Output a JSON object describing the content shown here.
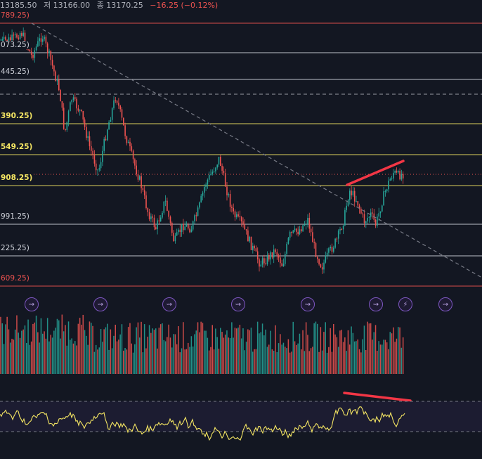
{
  "header": {
    "open_value": "13185.50",
    "low_label": "저",
    "low_value": "13166.00",
    "close_label": "종",
    "close_value": "13170.25",
    "change": "−16.25 (−0.12%)"
  },
  "colors": {
    "background": "#131722",
    "up": "#26a69a",
    "down": "#ef5350",
    "fib_yellow": "#f5e663",
    "fib_white": "#d1d4dc",
    "fib_red": "#ef5350",
    "trendline": "#787b86",
    "divergence": "#f23645",
    "rsi": "#f5e663",
    "event": "#7e57c2"
  },
  "chart_data": [
    {
      "type": "candlestick",
      "price_range_note": "",
      "levels": [
        {
          "label": "789.25)",
          "color": "red"
        },
        {
          "label": "073.25)",
          "color": "white"
        },
        {
          "label": "445.25)",
          "color": "white"
        },
        {
          "label": "",
          "color": "dashed"
        },
        {
          "label": "390.25)",
          "color": "yellow"
        },
        {
          "label": "549.25)",
          "color": "yellow"
        },
        {
          "label": "908.25)",
          "color": "yellow"
        },
        {
          "label": "991.25)",
          "color": "white"
        },
        {
          "label": "225.25)",
          "color": "white"
        },
        {
          "label": "609.25)",
          "color": "red"
        }
      ],
      "events": [
        {
          "icon": "arrow-circle-icon"
        },
        {
          "icon": "arrow-circle-icon"
        },
        {
          "icon": "arrow-circle-icon"
        },
        {
          "icon": "arrow-circle-icon"
        },
        {
          "icon": "arrow-circle-icon"
        },
        {
          "icon": "arrow-circle-icon"
        },
        {
          "icon": "lightning-icon"
        },
        {
          "icon": "arrow-circle-icon"
        }
      ]
    },
    {
      "type": "bar",
      "name": "",
      "note": ""
    },
    {
      "type": "line",
      "name": "",
      "note": ""
    }
  ]
}
